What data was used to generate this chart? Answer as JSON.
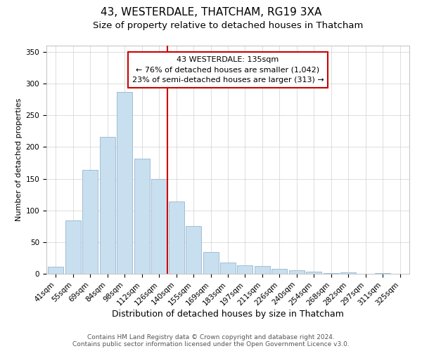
{
  "title": "43, WESTERDALE, THATCHAM, RG19 3XA",
  "subtitle": "Size of property relative to detached houses in Thatcham",
  "xlabel": "Distribution of detached houses by size in Thatcham",
  "ylabel": "Number of detached properties",
  "bar_labels": [
    "41sqm",
    "55sqm",
    "69sqm",
    "84sqm",
    "98sqm",
    "112sqm",
    "126sqm",
    "140sqm",
    "155sqm",
    "169sqm",
    "183sqm",
    "197sqm",
    "211sqm",
    "226sqm",
    "240sqm",
    "254sqm",
    "268sqm",
    "282sqm",
    "297sqm",
    "311sqm",
    "325sqm"
  ],
  "bar_values": [
    11,
    84,
    164,
    216,
    287,
    182,
    150,
    114,
    75,
    34,
    18,
    13,
    12,
    8,
    5,
    3,
    1,
    2,
    0,
    1,
    0
  ],
  "bar_color": "#c8dff0",
  "bar_edge_color": "#a0bdd4",
  "vline_color": "#cc0000",
  "annotation_text": "43 WESTERDALE: 135sqm\n← 76% of detached houses are smaller (1,042)\n23% of semi-detached houses are larger (313) →",
  "annotation_box_color": "#ffffff",
  "annotation_box_edge": "#cc0000",
  "ylim": [
    0,
    360
  ],
  "yticks": [
    0,
    50,
    100,
    150,
    200,
    250,
    300,
    350
  ],
  "footer_line1": "Contains HM Land Registry data © Crown copyright and database right 2024.",
  "footer_line2": "Contains public sector information licensed under the Open Government Licence v3.0.",
  "title_fontsize": 11,
  "subtitle_fontsize": 9.5,
  "xlabel_fontsize": 9,
  "ylabel_fontsize": 8,
  "tick_fontsize": 7.5,
  "annotation_fontsize": 8,
  "footer_fontsize": 6.5
}
